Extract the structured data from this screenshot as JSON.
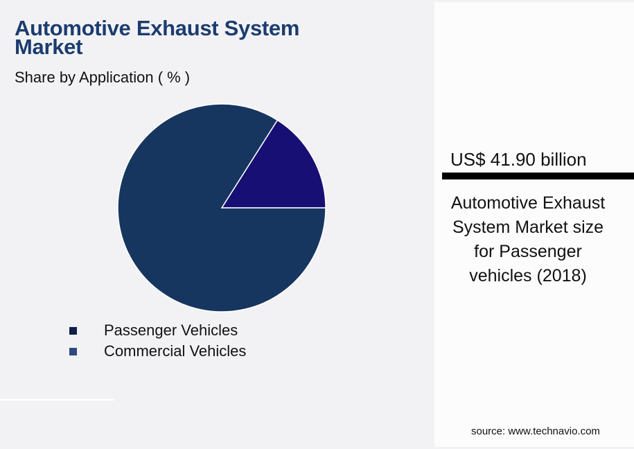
{
  "header": {
    "title": "Automotive Exhaust System Market",
    "subtitle": "Share by Application ( % )"
  },
  "legend": [
    {
      "label": "Passenger Vehicles",
      "color": "#0f1f45"
    },
    {
      "label": "Commercial Vehicles",
      "color": "#2f4a7e"
    }
  ],
  "highlight": {
    "value": "US$ 41.90 billion",
    "description": "Automotive Exhaust System Market size for Passenger vehicles (2018)"
  },
  "source": "source: www.technavio.com",
  "chart_data": {
    "type": "pie",
    "title": "Automotive Exhaust System Market",
    "subtitle": "Share by Application ( % )",
    "categories": [
      "Passenger Vehicles",
      "Commercial Vehicles"
    ],
    "values": [
      84,
      16
    ],
    "colors": [
      "#17365f",
      "#170f73"
    ],
    "legend_position": "bottom-left",
    "annotation": "US$ 41.90 billion — Automotive Exhaust System Market size for Passenger vehicles (2018)"
  }
}
